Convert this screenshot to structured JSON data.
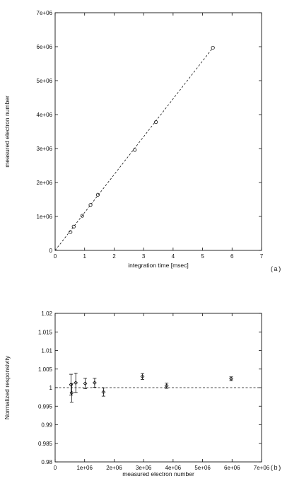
{
  "chart_data": [
    {
      "type": "scatter",
      "panel_label": "(a)",
      "xlabel": "integration time [msec]",
      "ylabel": "measured electron number",
      "xlim": [
        0,
        7
      ],
      "ylim": [
        0,
        7000000
      ],
      "x_ticks": [
        0,
        1,
        2,
        3,
        4,
        5,
        6,
        7
      ],
      "x_tick_labels": [
        "0",
        "1",
        "2",
        "3",
        "4",
        "5",
        "6",
        "7"
      ],
      "y_ticks": [
        0,
        1000000,
        2000000,
        3000000,
        4000000,
        5000000,
        6000000,
        7000000
      ],
      "y_tick_labels": [
        "0",
        "1e+06",
        "2e+06",
        "3e+06",
        "4e+06",
        "5e+06",
        "6e+06",
        "7e+06"
      ],
      "grid": false,
      "points": [
        {
          "x": 0.52,
          "y": 540000
        },
        {
          "x": 0.63,
          "y": 700000
        },
        {
          "x": 0.92,
          "y": 1020000
        },
        {
          "x": 1.2,
          "y": 1340000
        },
        {
          "x": 1.45,
          "y": 1640000
        },
        {
          "x": 2.7,
          "y": 2960000
        },
        {
          "x": 3.42,
          "y": 3780000
        },
        {
          "x": 5.35,
          "y": 5970000
        }
      ],
      "fit_line": {
        "style": "dashed",
        "from": [
          0,
          0
        ],
        "to": [
          5.35,
          5970000
        ]
      }
    },
    {
      "type": "scatter",
      "panel_label": "(b)",
      "xlabel": "measured electron number",
      "ylabel": "Normalized responsivity",
      "xlim": [
        0,
        7000000
      ],
      "ylim": [
        0.98,
        1.02
      ],
      "x_ticks": [
        0,
        1000000,
        2000000,
        3000000,
        4000000,
        5000000,
        6000000,
        7000000
      ],
      "x_tick_labels": [
        "0",
        "1e+06",
        "2e+06",
        "3e+06",
        "4e+06",
        "5e+06",
        "6e+06",
        "7e+06"
      ],
      "y_ticks": [
        0.98,
        0.985,
        0.99,
        0.995,
        1.0,
        1.005,
        1.01,
        1.015,
        1.02
      ],
      "y_tick_labels": [
        "0.98",
        "0.985",
        "0.99",
        "0.995",
        "1",
        "1.005",
        "1.01",
        "1.015",
        "1.02"
      ],
      "grid": false,
      "reference_line": {
        "style": "dashed",
        "y": 1.0
      },
      "points": [
        {
          "x": 540000,
          "y": 1.0008,
          "err": 0.0028
        },
        {
          "x": 560000,
          "y": 0.9986,
          "err": 0.0025
        },
        {
          "x": 700000,
          "y": 1.0013,
          "err": 0.0026
        },
        {
          "x": 1020000,
          "y": 1.0011,
          "err": 0.0014
        },
        {
          "x": 1340000,
          "y": 1.0013,
          "err": 0.0012
        },
        {
          "x": 1640000,
          "y": 0.9988,
          "err": 0.0011
        },
        {
          "x": 2960000,
          "y": 1.003,
          "err": 0.0008
        },
        {
          "x": 3780000,
          "y": 1.0005,
          "err": 0.0007
        },
        {
          "x": 5970000,
          "y": 1.0024,
          "err": 0.0005
        }
      ]
    }
  ]
}
